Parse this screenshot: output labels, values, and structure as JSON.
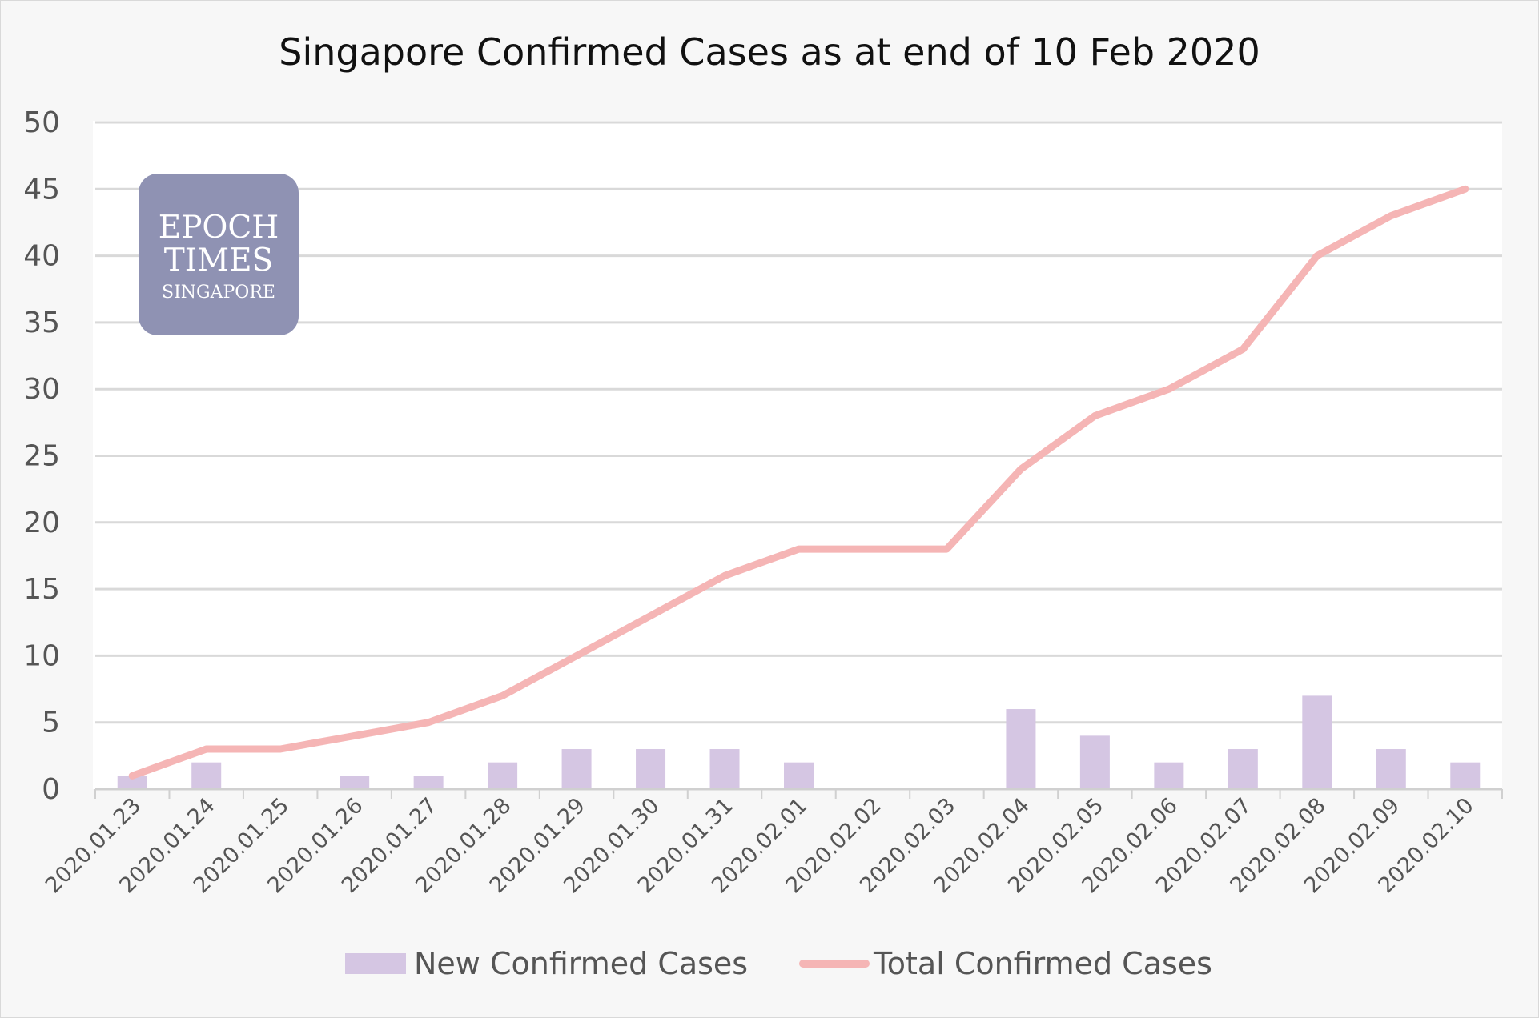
{
  "chart_data": {
    "type": "bar",
    "title": "Singapore Confirmed Cases as at end of 10 Feb 2020",
    "xlabel": "",
    "ylabel": "",
    "ylim": [
      0,
      50
    ],
    "yticks": [
      "0",
      "5",
      "10",
      "15",
      "20",
      "25",
      "30",
      "35",
      "40",
      "45",
      "50"
    ],
    "grid": true,
    "legend_position": "bottom",
    "categories": [
      "2020.01.23",
      "2020.01.24",
      "2020.01.25",
      "2020.01.26",
      "2020.01.27",
      "2020.01.28",
      "2020.01.29",
      "2020.01.30",
      "2020.01.31",
      "2020.02.01",
      "2020.02.02",
      "2020.02.03",
      "2020.02.04",
      "2020.02.05",
      "2020.02.06",
      "2020.02.07",
      "2020.02.08",
      "2020.02.09",
      "2020.02.10"
    ],
    "series": [
      {
        "name": "New Confirmed Cases",
        "type": "bar",
        "color": "#d5c6e3",
        "values": [
          1,
          2,
          0,
          1,
          1,
          2,
          3,
          3,
          3,
          2,
          0,
          0,
          6,
          4,
          2,
          3,
          7,
          3,
          2
        ]
      },
      {
        "name": "Total Confirmed Cases",
        "type": "line",
        "color": "#f5b5b5",
        "values": [
          1,
          3,
          3,
          4,
          5,
          7,
          10,
          13,
          16,
          18,
          18,
          18,
          24,
          28,
          30,
          33,
          40,
          43,
          45
        ]
      }
    ]
  },
  "watermark": {
    "line1": "EPOCH",
    "line2": "TIMES",
    "line3": "SINGAPORE",
    "color": "#8f92b3"
  }
}
